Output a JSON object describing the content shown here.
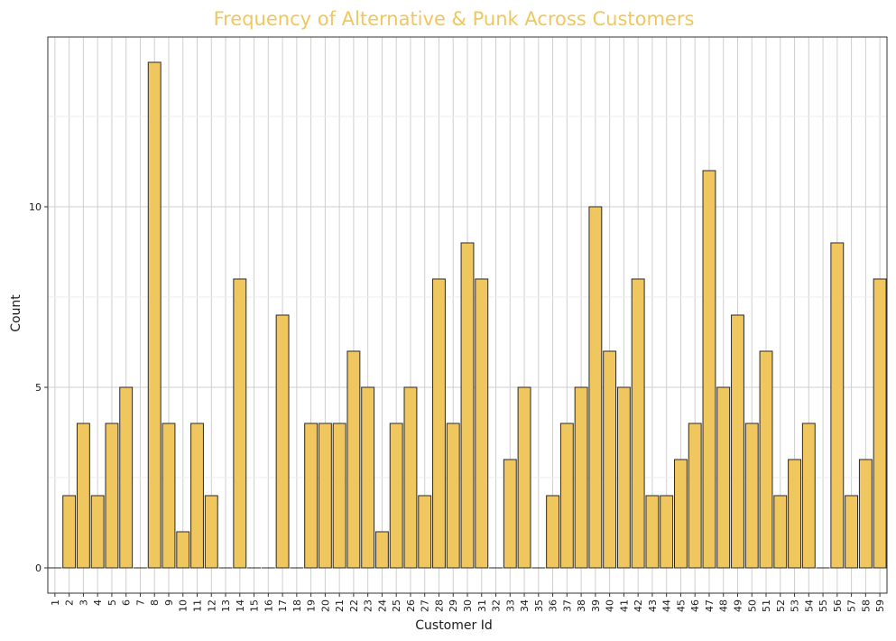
{
  "chart_data": {
    "type": "bar",
    "title": "Frequency of Alternative & Punk Across Customers",
    "xlabel": "Customer Id",
    "ylabel": "Count",
    "categories": [
      "1",
      "2",
      "3",
      "4",
      "5",
      "6",
      "7",
      "8",
      "9",
      "10",
      "11",
      "12",
      "13",
      "14",
      "15",
      "16",
      "17",
      "18",
      "19",
      "20",
      "21",
      "22",
      "23",
      "24",
      "25",
      "26",
      "27",
      "28",
      "29",
      "30",
      "31",
      "32",
      "33",
      "34",
      "35",
      "36",
      "37",
      "38",
      "39",
      "40",
      "41",
      "42",
      "43",
      "44",
      "45",
      "46",
      "47",
      "48",
      "49",
      "50",
      "51",
      "52",
      "53",
      "54",
      "55",
      "56",
      "57",
      "58",
      "59"
    ],
    "values": [
      0,
      2,
      4,
      2,
      4,
      5,
      0,
      14,
      4,
      1,
      4,
      2,
      0,
      8,
      0,
      0,
      7,
      0,
      4,
      4,
      4,
      6,
      5,
      1,
      4,
      5,
      2,
      8,
      4,
      9,
      8,
      0,
      3,
      5,
      0,
      2,
      4,
      5,
      10,
      6,
      5,
      8,
      2,
      2,
      3,
      4,
      11,
      5,
      7,
      4,
      6,
      2,
      3,
      4,
      0,
      9,
      2,
      3,
      8
    ],
    "ylim": [
      -0.7,
      14.7
    ],
    "yticks": [
      0,
      5,
      10
    ],
    "grid": true,
    "bar_color": "#f0c75e",
    "bar_edge_color": "#2a2a2a",
    "title_color": "#f0c75e"
  }
}
